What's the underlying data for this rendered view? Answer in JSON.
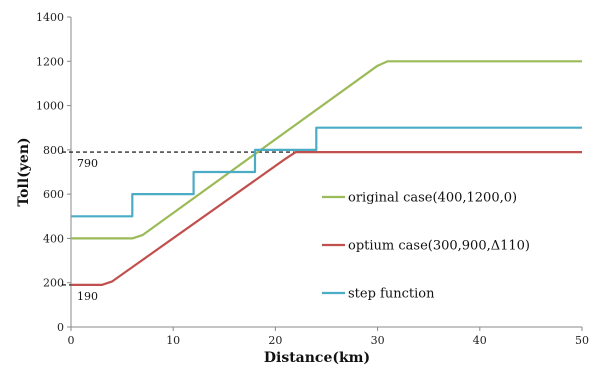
{
  "chart_data": {
    "type": "line",
    "xlabel": "Distance(km)",
    "ylabel": "Toll(yen)",
    "xlim": [
      0,
      50
    ],
    "ylim": [
      0,
      1400
    ],
    "x_ticks": [
      0,
      10,
      20,
      30,
      40,
      50
    ],
    "y_ticks": [
      0,
      200,
      400,
      600,
      800,
      1000,
      1200,
      1400
    ],
    "grid": false,
    "legend_position": "right",
    "series": [
      {
        "name": "original case(400,1200,0)",
        "color": "#9bbb59",
        "x": [
          0,
          6,
          7,
          30,
          31,
          50
        ],
        "y": [
          400,
          400,
          415,
          1180,
          1200,
          1200
        ]
      },
      {
        "name": "optium case(300,900,Δ110)",
        "color": "#c0504d",
        "x": [
          0,
          3,
          4,
          21,
          22,
          50
        ],
        "y": [
          190,
          190,
          205,
          760,
          790,
          790
        ]
      },
      {
        "name": "step function",
        "color": "#4bacc6",
        "x": [
          0,
          6,
          6,
          12,
          12,
          18,
          18,
          24,
          24,
          50
        ],
        "y": [
          500,
          500,
          600,
          600,
          700,
          700,
          800,
          800,
          900,
          900
        ]
      }
    ],
    "reference_lines": [
      {
        "label": "790",
        "y": 790,
        "x_end": 22
      },
      {
        "label": "190",
        "y": 190,
        "x_end": 3
      }
    ]
  }
}
